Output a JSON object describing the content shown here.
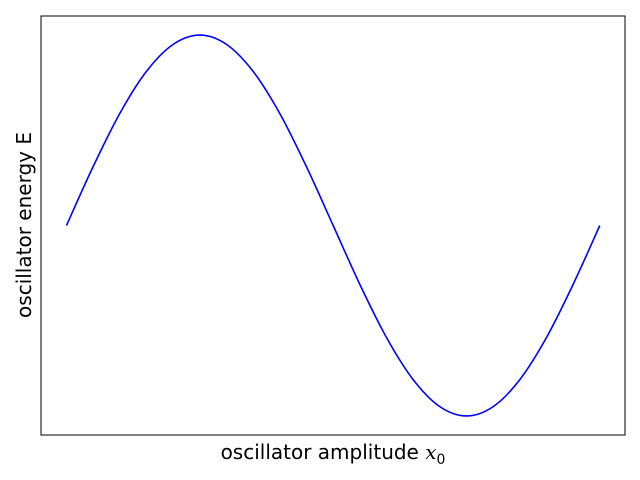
{
  "chart_data": {
    "type": "line",
    "title": "",
    "xlabel": "oscillator amplitude",
    "xlabel_symbol": "x",
    "xlabel_subscript": "0",
    "ylabel": "oscillator energy E",
    "xticks": [],
    "yticks": [],
    "grid": false,
    "xlim": [
      -0.3,
      6.58
    ],
    "ylim": [
      -1.1,
      1.1
    ],
    "series": [
      {
        "color": "#0000ff",
        "x": [
          0,
          0.314,
          0.628,
          0.942,
          1.257,
          1.571,
          1.885,
          2.199,
          2.513,
          2.827,
          3.142,
          3.456,
          3.77,
          4.084,
          4.398,
          4.712,
          5.027,
          5.341,
          5.655,
          5.969,
          6.283
        ],
        "y": [
          0,
          0.309,
          0.588,
          0.809,
          0.951,
          1.0,
          0.951,
          0.809,
          0.588,
          0.309,
          0.0,
          -0.309,
          -0.588,
          -0.809,
          -0.951,
          -1.0,
          -0.951,
          -0.809,
          -0.588,
          -0.309,
          0.0
        ]
      }
    ]
  }
}
